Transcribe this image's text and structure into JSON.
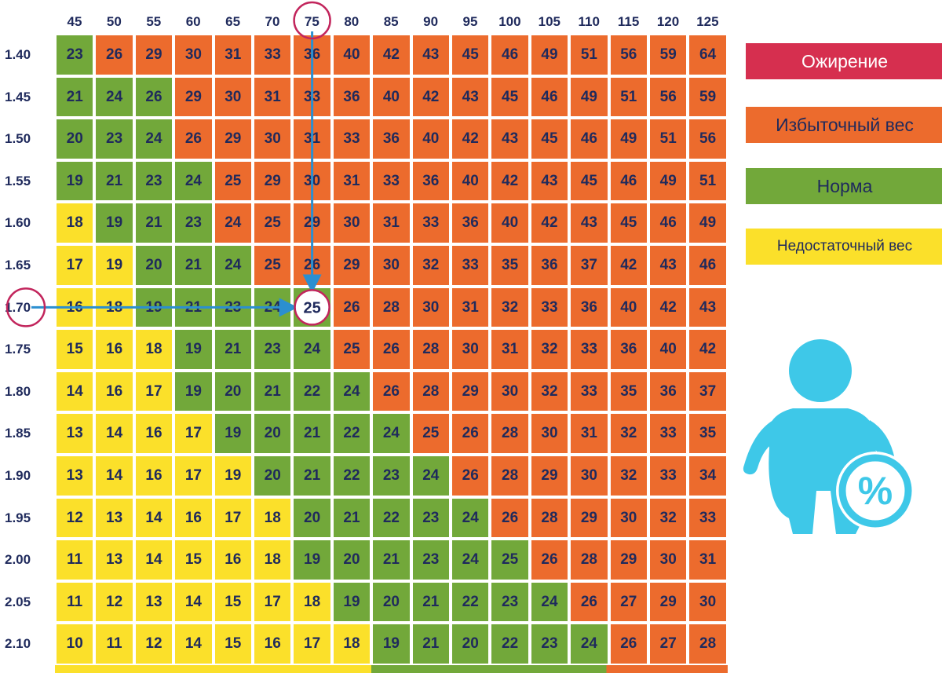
{
  "chart_data": {
    "type": "heatmap",
    "title": "",
    "x_labels": [
      "45",
      "50",
      "55",
      "60",
      "65",
      "70",
      "75",
      "80",
      "85",
      "90",
      "95",
      "100",
      "105",
      "110",
      "115",
      "120",
      "125"
    ],
    "y_labels": [
      "1.40",
      "1.45",
      "1.50",
      "1.55",
      "1.60",
      "1.65",
      "1.70",
      "1.75",
      "1.80",
      "1.85",
      "1.90",
      "1.95",
      "2.00",
      "2.05",
      "2.10"
    ],
    "values": [
      [
        23,
        26,
        29,
        30,
        31,
        33,
        36,
        40,
        42,
        43,
        45,
        46,
        49,
        51,
        56,
        59,
        64
      ],
      [
        21,
        24,
        26,
        29,
        30,
        31,
        33,
        36,
        40,
        42,
        43,
        45,
        46,
        49,
        51,
        56,
        59
      ],
      [
        20,
        23,
        24,
        26,
        29,
        30,
        31,
        33,
        36,
        40,
        42,
        43,
        45,
        46,
        49,
        51,
        56
      ],
      [
        19,
        21,
        23,
        24,
        25,
        29,
        30,
        31,
        33,
        36,
        40,
        42,
        43,
        45,
        46,
        49,
        51
      ],
      [
        18,
        19,
        21,
        23,
        24,
        25,
        29,
        30,
        31,
        33,
        36,
        40,
        42,
        43,
        45,
        46,
        49
      ],
      [
        17,
        19,
        20,
        21,
        24,
        25,
        26,
        29,
        30,
        32,
        33,
        35,
        36,
        37,
        42,
        43,
        46
      ],
      [
        16,
        18,
        19,
        21,
        23,
        24,
        25,
        26,
        28,
        30,
        31,
        32,
        33,
        36,
        40,
        42,
        43
      ],
      [
        15,
        16,
        18,
        19,
        21,
        23,
        24,
        25,
        26,
        28,
        30,
        31,
        32,
        33,
        36,
        40,
        42
      ],
      [
        14,
        16,
        17,
        19,
        20,
        21,
        22,
        24,
        26,
        28,
        29,
        30,
        32,
        33,
        35,
        36,
        37
      ],
      [
        13,
        14,
        16,
        17,
        19,
        20,
        21,
        22,
        24,
        25,
        26,
        28,
        30,
        31,
        32,
        33,
        35
      ],
      [
        13,
        14,
        16,
        17,
        19,
        20,
        21,
        22,
        23,
        24,
        26,
        28,
        29,
        30,
        32,
        33,
        34
      ],
      [
        12,
        13,
        14,
        16,
        17,
        18,
        20,
        21,
        22,
        23,
        24,
        26,
        28,
        29,
        30,
        32,
        33
      ],
      [
        11,
        13,
        14,
        15,
        16,
        18,
        19,
        20,
        21,
        23,
        24,
        25,
        26,
        28,
        29,
        30,
        31
      ],
      [
        11,
        12,
        13,
        14,
        15,
        17,
        18,
        19,
        20,
        21,
        22,
        23,
        24,
        26,
        27,
        29,
        30
      ],
      [
        10,
        11,
        12,
        14,
        15,
        16,
        17,
        18,
        19,
        21,
        20,
        22,
        23,
        24,
        26,
        27,
        28
      ]
    ],
    "categories_grid": [
      "GOOOOOOOOOOOOOOOO",
      "GGGOOOOOOOOOOOOOO",
      "GGGOOOOOOOOOOOOOO",
      "GGGGOOOOOOOOOOOOO",
      "YGGGOOOOOOOOOOOOO",
      "YYGGGOOOOOOOOOOOO",
      "YYGGGGHOOOOOOOOOO",
      "YYYGGGGOOOOOOOOOO",
      "YYYGGGGGOOOOOOOOO",
      "YYYYGGGGGOOOOOOOO",
      "YYYYYGGGGGOOOOOOO",
      "YYYYYYGGGGGOOOOOO",
      "YYYYYYGGGGGGOOOOO",
      "YYYYYYYGGGGGGOOOO",
      "YYYYYYYYGGGGGGOOO"
    ],
    "categories": [
      {
        "code": "R",
        "label": "Ожирение",
        "color": "#d62f4f"
      },
      {
        "code": "O",
        "label": "Избыточный вес",
        "color": "#ec6b2d"
      },
      {
        "code": "G",
        "label": "Норма",
        "color": "#72a83a"
      },
      {
        "code": "Y",
        "label": "Недостаточный вес",
        "color": "#fbe02a"
      }
    ],
    "highlight": {
      "x": "75",
      "y": "1.70",
      "value": 25
    },
    "grid": false,
    "legend_position": "right"
  },
  "colors": {
    "text": "#1f2a5c",
    "arrow": "#2b8fd0",
    "marker_ring": "#c2255c",
    "person_icon": "#3ec8e8"
  },
  "icons": {
    "person": "obese-person-icon",
    "percent": "percent-icon",
    "arrow": "arrow-icon"
  }
}
